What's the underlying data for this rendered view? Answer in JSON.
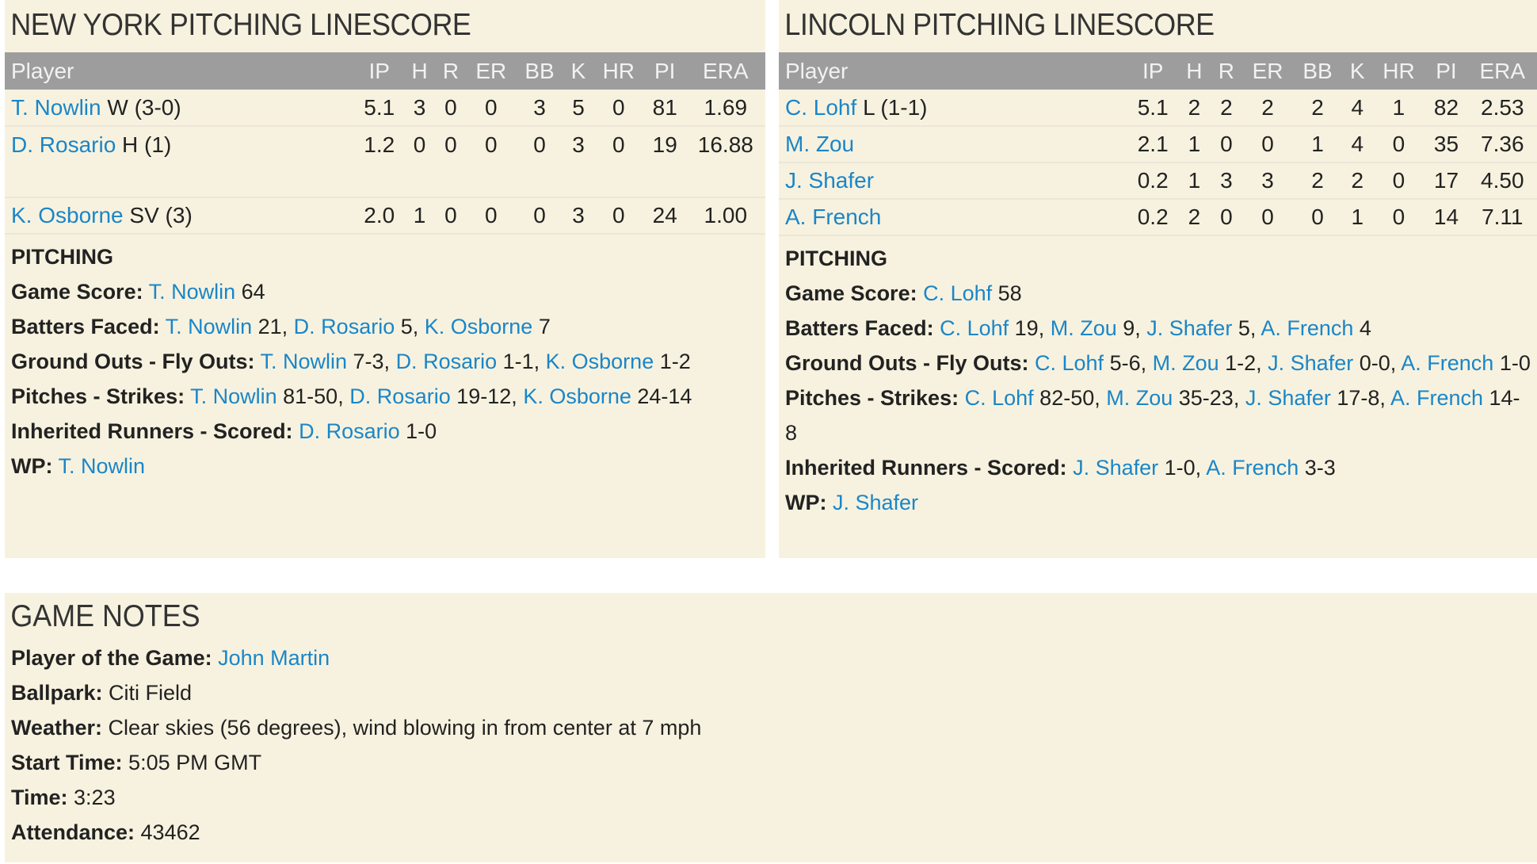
{
  "columns": [
    "Player",
    "IP",
    "H",
    "R",
    "ER",
    "BB",
    "K",
    "HR",
    "PI",
    "ERA"
  ],
  "ny": {
    "title": "NEW YORK PITCHING LINESCORE",
    "rows": [
      {
        "name": "T. Nowlin",
        "dec": "W (3-0)",
        "stats": [
          "5.1",
          "3",
          "0",
          "0",
          "3",
          "5",
          "0",
          "81",
          "1.69"
        ]
      },
      {
        "name": "D. Rosario",
        "dec": "H (1)",
        "stats": [
          "1.2",
          "0",
          "0",
          "0",
          "0",
          "3",
          "0",
          "19",
          "16.88"
        ]
      },
      {
        "name": "K. Osborne",
        "dec": "SV (3)",
        "stats": [
          "2.0",
          "1",
          "0",
          "0",
          "0",
          "3",
          "0",
          "24",
          "1.00"
        ]
      }
    ],
    "pitching_title": "PITCHING",
    "lines": [
      {
        "label": "Game Score:",
        "parts": [
          [
            "T. Nowlin",
            " 64"
          ]
        ]
      },
      {
        "label": "Batters Faced:",
        "parts": [
          [
            "T. Nowlin",
            " 21, "
          ],
          [
            "D. Rosario",
            " 5, "
          ],
          [
            "K. Osborne",
            " 7"
          ]
        ]
      },
      {
        "label": "Ground Outs - Fly Outs:",
        "parts": [
          [
            "T. Nowlin",
            " 7-3, "
          ],
          [
            "D. Rosario",
            " 1-1, "
          ],
          [
            "K. Osborne",
            " 1-2"
          ]
        ]
      },
      {
        "label": "Pitches - Strikes:",
        "parts": [
          [
            "T. Nowlin",
            " 81-50, "
          ],
          [
            "D. Rosario",
            " 19-12, "
          ],
          [
            "K. Osborne",
            " 24-14"
          ]
        ]
      },
      {
        "label": "Inherited Runners - Scored:",
        "parts": [
          [
            "D. Rosario",
            " 1-0"
          ]
        ]
      },
      {
        "label": "WP:",
        "parts": [
          [
            "T. Nowlin",
            ""
          ]
        ]
      }
    ]
  },
  "lincoln": {
    "title": "LINCOLN PITCHING LINESCORE",
    "rows": [
      {
        "name": "C. Lohf",
        "dec": "L (1-1)",
        "stats": [
          "5.1",
          "2",
          "2",
          "2",
          "2",
          "4",
          "1",
          "82",
          "2.53"
        ]
      },
      {
        "name": "M. Zou",
        "dec": "",
        "stats": [
          "2.1",
          "1",
          "0",
          "0",
          "1",
          "4",
          "0",
          "35",
          "7.36"
        ]
      },
      {
        "name": "J. Shafer",
        "dec": "",
        "stats": [
          "0.2",
          "1",
          "3",
          "3",
          "2",
          "2",
          "0",
          "17",
          "4.50"
        ]
      },
      {
        "name": "A. French",
        "dec": "",
        "stats": [
          "0.2",
          "2",
          "0",
          "0",
          "0",
          "1",
          "0",
          "14",
          "7.11"
        ]
      }
    ],
    "pitching_title": "PITCHING",
    "lines": [
      {
        "label": "Game Score:",
        "parts": [
          [
            "C. Lohf",
            " 58"
          ]
        ]
      },
      {
        "label": "Batters Faced:",
        "parts": [
          [
            "C. Lohf",
            " 19, "
          ],
          [
            "M. Zou",
            " 9, "
          ],
          [
            "J. Shafer",
            " 5, "
          ],
          [
            "A. French",
            " 4"
          ]
        ]
      },
      {
        "label": "Ground Outs - Fly Outs:",
        "parts": [
          [
            "C. Lohf",
            " 5-6, "
          ],
          [
            "M. Zou",
            " 1-2, "
          ],
          [
            "J. Shafer",
            " 0-0, "
          ],
          [
            "A. French",
            " 1-0"
          ]
        ]
      },
      {
        "label": "Pitches - Strikes:",
        "parts": [
          [
            "C. Lohf",
            " 82-50, "
          ],
          [
            "M. Zou",
            " 35-23, "
          ],
          [
            "J. Shafer",
            " 17-8, "
          ],
          [
            "A. French",
            " 14-8"
          ]
        ]
      },
      {
        "label": "Inherited Runners - Scored:",
        "parts": [
          [
            "J. Shafer",
            " 1-0, "
          ],
          [
            "A. French",
            " 3-3"
          ]
        ]
      },
      {
        "label": "WP:",
        "parts": [
          [
            "J. Shafer",
            ""
          ]
        ]
      }
    ]
  },
  "notes": {
    "title": "GAME NOTES",
    "player_label": "Player of the Game:",
    "player": "John Martin",
    "items": [
      {
        "label": "Ballpark:",
        "value": " Citi Field"
      },
      {
        "label": "Weather:",
        "value": " Clear skies (56 degrees), wind blowing in from center at 7 mph"
      },
      {
        "label": "Start Time:",
        "value": " 5:05 PM GMT"
      },
      {
        "label": "Time:",
        "value": " 3:23"
      },
      {
        "label": "Attendance:",
        "value": " 43462"
      }
    ]
  },
  "colors": {
    "link": "#1a86c8",
    "panel": "#f7f2df",
    "header": "#9d9d9d"
  }
}
